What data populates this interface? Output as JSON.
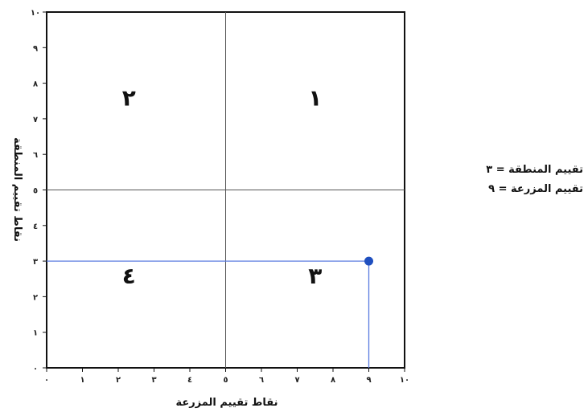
{
  "chart_data": {
    "type": "scatter",
    "xlabel": "نقاط تقييم المزرعة",
    "ylabel": "نقاط تقييم المنطقة",
    "xlim": [
      0,
      10
    ],
    "ylim": [
      0,
      10
    ],
    "x_ticks": [
      "٠",
      "١",
      "٢",
      "٣",
      "٤",
      "٥",
      "٦",
      "٧",
      "٨",
      "٩",
      "١٠"
    ],
    "y_ticks": [
      "٠",
      "١",
      "٢",
      "٣",
      "٤",
      "٥",
      "٦",
      "٧",
      "٨",
      "٩",
      "١٠"
    ],
    "quadrant_dividers": {
      "x": 5,
      "y": 5
    },
    "quadrants": [
      {
        "label": "١",
        "x": 7.5,
        "y": 7.6
      },
      {
        "label": "٢",
        "x": 2.3,
        "y": 7.6
      },
      {
        "label": "٣",
        "x": 7.5,
        "y": 2.6
      },
      {
        "label": "٤",
        "x": 2.3,
        "y": 2.6
      }
    ],
    "points": [
      {
        "x": 9,
        "y": 3
      }
    ],
    "guide_line_color": "#5a7be0",
    "point_color": "#1f4fbf",
    "grid": false
  },
  "annotations": [
    "تقييم المنطقة = ٣",
    "تقييم المزرعة = ٩"
  ]
}
